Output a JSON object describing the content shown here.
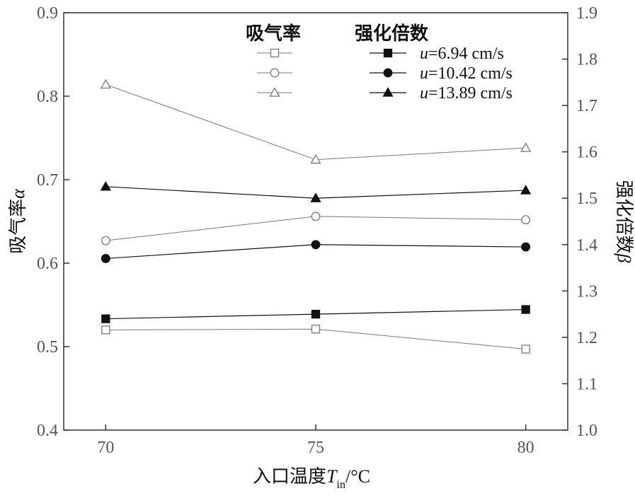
{
  "chart_data": {
    "type": "line",
    "x": [
      70,
      75,
      80
    ],
    "xlim": [
      69,
      81
    ],
    "x_ticks": [
      "70",
      "75",
      "80"
    ],
    "xlabel": {
      "main": "入口温度",
      "var": "T",
      "sub": "in",
      "unit": "/°C"
    },
    "y_left": {
      "label_main": "吸气率",
      "label_symbol": "α",
      "lim": [
        0.4,
        0.9
      ],
      "ticks": [
        "0.4",
        "0.5",
        "0.6",
        "0.7",
        "0.8",
        "0.9"
      ]
    },
    "y_right": {
      "label_main": "强化倍数",
      "label_symbol": "β",
      "lim": [
        1.0,
        1.9
      ],
      "ticks": [
        "1.0",
        "1.1",
        "1.2",
        "1.3",
        "1.4",
        "1.5",
        "1.6",
        "1.7",
        "1.8",
        "1.9"
      ]
    },
    "legend": {
      "left_header": "吸气率",
      "right_header": "强化倍数",
      "entries": [
        {
          "var": "u",
          "text": "=6.94 cm/s"
        },
        {
          "var": "u",
          "text": "=10.42 cm/s"
        },
        {
          "var": "u",
          "text": "=13.89 cm/s"
        }
      ]
    },
    "series": [
      {
        "group": "alpha",
        "axis": "left",
        "marker": "square",
        "filled": false,
        "color": "#777777",
        "values": [
          0.52,
          0.521,
          0.497
        ]
      },
      {
        "group": "alpha",
        "axis": "left",
        "marker": "circle",
        "filled": false,
        "color": "#777777",
        "values": [
          0.627,
          0.656,
          0.652
        ]
      },
      {
        "group": "alpha",
        "axis": "left",
        "marker": "triangle",
        "filled": false,
        "color": "#777777",
        "values": [
          0.814,
          0.724,
          0.738
        ]
      },
      {
        "group": "beta",
        "axis": "right",
        "marker": "square",
        "filled": true,
        "color": "#111111",
        "values": [
          1.24,
          1.25,
          1.26
        ]
      },
      {
        "group": "beta",
        "axis": "right",
        "marker": "circle",
        "filled": true,
        "color": "#111111",
        "values": [
          1.37,
          1.4,
          1.395
        ]
      },
      {
        "group": "beta",
        "axis": "right",
        "marker": "triangle",
        "filled": true,
        "color": "#111111",
        "values": [
          1.525,
          1.5,
          1.517
        ]
      }
    ]
  }
}
